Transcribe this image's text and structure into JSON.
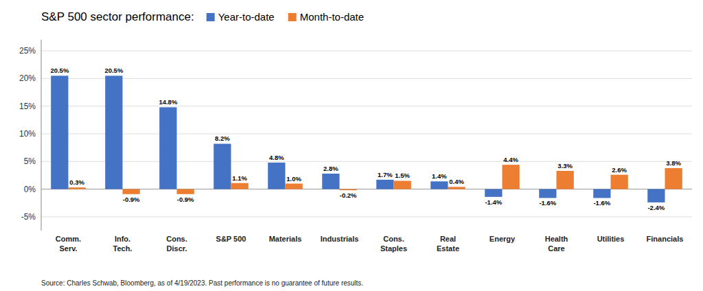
{
  "chart_data": {
    "type": "bar",
    "title": "S&P 500 sector performance:",
    "categories": [
      "Comm.\nServ.",
      "Info.\nTech.",
      "Cons.\nDiscr.",
      "S&P 500",
      "Materials",
      "Industrials",
      "Cons.\nStaples",
      "Real\nEstate",
      "Energy",
      "Health\nCare",
      "Utilities",
      "Financials"
    ],
    "series": [
      {
        "name": "Year-to-date",
        "color": "#4472C4",
        "values": [
          20.5,
          20.5,
          14.8,
          8.2,
          4.8,
          2.8,
          1.7,
          1.4,
          -1.4,
          -1.6,
          -1.6,
          -2.4
        ],
        "value_labels": [
          "20.5%",
          "20.5%",
          "14.8%",
          "8.2%",
          "4.8%",
          "2.8%",
          "1.7%",
          "1.4%",
          "-1.4%",
          "-1.6%",
          "-1.6%",
          "-2.4%"
        ]
      },
      {
        "name": "Month-to-date",
        "color": "#ED7D31",
        "values": [
          0.3,
          -0.9,
          -0.9,
          1.1,
          1.0,
          -0.2,
          1.5,
          0.4,
          4.4,
          3.3,
          2.6,
          3.8
        ],
        "value_labels": [
          "0.3%",
          "-0.9%",
          "-0.9%",
          "1.1%",
          "1.0%",
          "-0.2%",
          "1.5%",
          "0.4%",
          "4.4%",
          "3.3%",
          "2.6%",
          "3.8%"
        ]
      }
    ],
    "ylim": [
      -7.5,
      27
    ],
    "yticks": [
      {
        "value": -5,
        "label": "-5%"
      },
      {
        "value": 0,
        "label": "0%"
      },
      {
        "value": 5,
        "label": "5%"
      },
      {
        "value": 10,
        "label": "10%"
      },
      {
        "value": 15,
        "label": "15%"
      },
      {
        "value": 20,
        "label": "20%"
      },
      {
        "value": 25,
        "label": "25%"
      }
    ],
    "grid": true,
    "legend": "upper left",
    "data_labels": true,
    "annotations": [
      "Source: Charles Schwab, Bloomberg, as of 4/19/2023.  Past performance is no guarantee of future results."
    ]
  }
}
